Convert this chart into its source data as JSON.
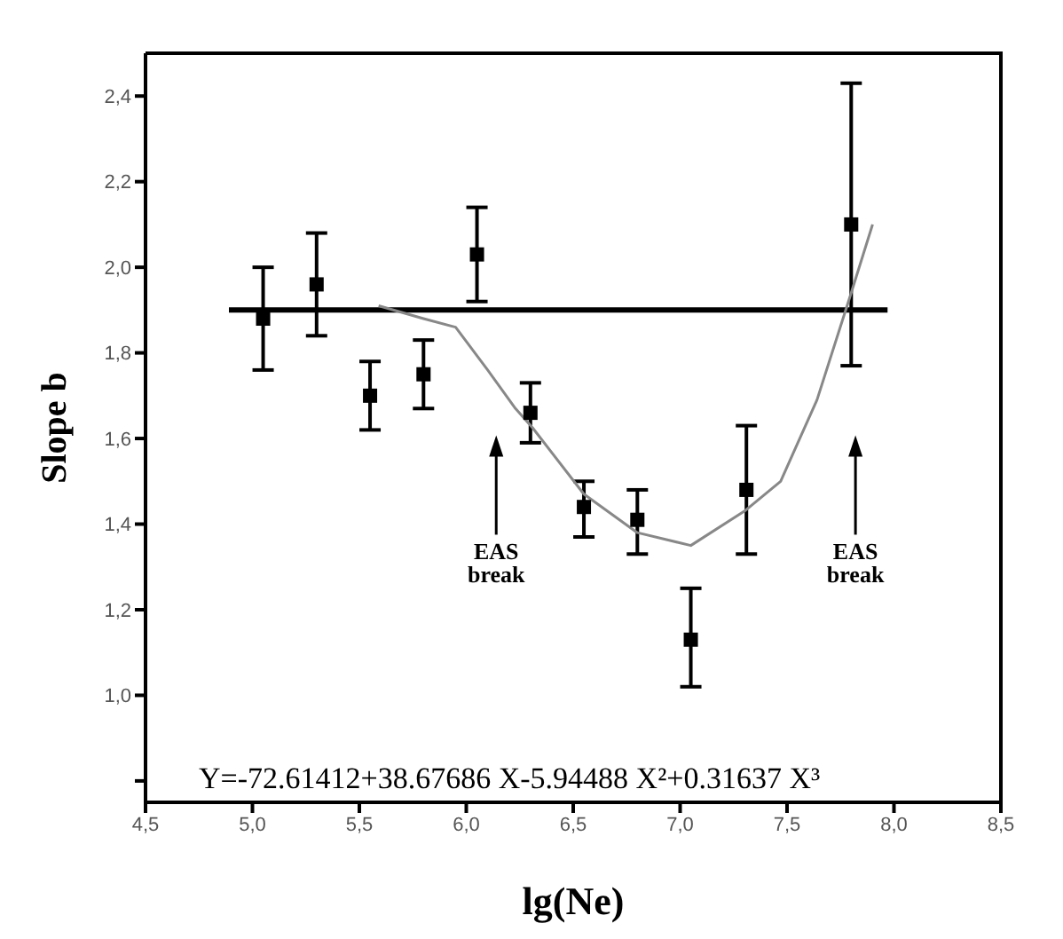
{
  "chart_data": {
    "type": "scatter",
    "xlabel": "lg(Ne)",
    "ylabel": "Slope  b",
    "xlim": [
      4.5,
      8.5
    ],
    "ylim": [
      0.75,
      2.5
    ],
    "xticks": [
      {
        "value": 4.5,
        "label": "4,5"
      },
      {
        "value": 5.0,
        "label": "5,0"
      },
      {
        "value": 5.5,
        "label": "5,5"
      },
      {
        "value": 6.0,
        "label": "6,0"
      },
      {
        "value": 6.5,
        "label": "6,5"
      },
      {
        "value": 7.0,
        "label": "7,0"
      },
      {
        "value": 7.5,
        "label": "7,5"
      },
      {
        "value": 8.0,
        "label": "8,0"
      },
      {
        "value": 8.5,
        "label": "8,5"
      }
    ],
    "yticks": [
      {
        "value": 0.8,
        "label": null
      },
      {
        "value": 1.0,
        "label": "1,0"
      },
      {
        "value": 1.2,
        "label": "1,2"
      },
      {
        "value": 1.4,
        "label": "1,4"
      },
      {
        "value": 1.6,
        "label": "1,6"
      },
      {
        "value": 1.8,
        "label": "1,8"
      },
      {
        "value": 2.0,
        "label": "2,0"
      },
      {
        "value": 2.2,
        "label": "2,2"
      },
      {
        "value": 2.4,
        "label": "2,4"
      }
    ],
    "grid": false,
    "legend": false,
    "series": [
      {
        "color": "#000000",
        "marker": "square",
        "x": [
          5.05,
          5.3,
          5.55,
          5.8,
          6.05,
          6.3,
          6.55,
          6.8,
          7.05,
          7.31,
          7.8
        ],
        "values": [
          1.88,
          1.96,
          1.7,
          1.75,
          2.03,
          1.66,
          1.44,
          1.41,
          1.13,
          1.48,
          2.1
        ],
        "errors": [
          [
            1.76,
            2.0
          ],
          [
            1.84,
            2.08
          ],
          [
            1.62,
            1.78
          ],
          [
            1.67,
            1.83
          ],
          [
            1.92,
            2.14
          ],
          [
            1.59,
            1.73
          ],
          [
            1.37,
            1.5
          ],
          [
            1.33,
            1.48
          ],
          [
            1.02,
            1.25
          ],
          [
            1.33,
            1.63
          ],
          [
            1.77,
            2.43
          ]
        ]
      },
      {
        "type": "line",
        "color": "#000000",
        "marker": "none",
        "x": [
          4.89,
          7.97
        ],
        "values": [
          1.9,
          1.9
        ]
      },
      {
        "type": "line",
        "color": "#888888",
        "marker": "none",
        "x": [
          5.59,
          5.8,
          5.95,
          6.1,
          6.23,
          6.31,
          6.55,
          6.8,
          7.05,
          7.3,
          7.47,
          7.64,
          7.8,
          7.9
        ],
        "values": [
          1.91,
          1.88,
          1.86,
          1.76,
          1.67,
          1.625,
          1.47,
          1.38,
          1.35,
          1.43,
          1.5,
          1.69,
          1.94,
          2.1
        ]
      }
    ],
    "annotations": [
      "EAS break",
      "EAS break",
      "Y=-72.61412+38.67686 X-5.94488 X²+0.31637 X³"
    ]
  }
}
